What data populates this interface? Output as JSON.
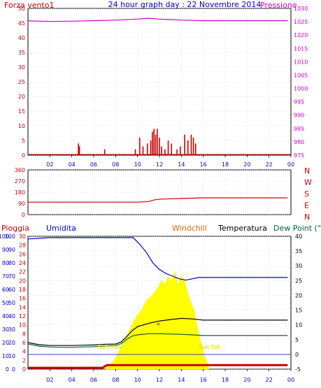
{
  "colors": {
    "wind": "#cc0000",
    "pressure": "#cc00cc",
    "title": "#0000cc",
    "direction": "#cc0000",
    "rain": "#cc0000",
    "humidity": "#0000cc",
    "windchill": "#dd6600",
    "temperature": "#000000",
    "dewpoint": "#006633",
    "sun": "#ffff00",
    "grid": "#c8c8c8"
  },
  "chart_data": [
    {
      "type": "bar",
      "title": "24 hour graph day : 22 Novembre 2014",
      "left_axis_label": "Forza vento1",
      "right_axis_label": "Pressione",
      "x_ticks": [
        "02",
        "04",
        "06",
        "08",
        "10",
        "12",
        "14",
        "16",
        "18",
        "20",
        "22",
        "00"
      ],
      "y_ticks": [
        "0",
        "5",
        "10",
        "15",
        "20",
        "25",
        "30",
        "35",
        "40",
        "45",
        "50"
      ],
      "y2_ticks": [
        "975",
        "980",
        "985",
        "990",
        "995",
        "1000",
        "1005",
        "1010",
        "1015",
        "1020",
        "1025",
        "1030"
      ],
      "ylim": [
        0,
        50
      ],
      "y2lim": [
        975,
        1030
      ],
      "xlim": [
        0,
        24
      ],
      "wind_bars": [
        {
          "x": 4.6,
          "v": 4
        },
        {
          "x": 4.7,
          "v": 3
        },
        {
          "x": 7.0,
          "v": 2
        },
        {
          "x": 9.8,
          "v": 2
        },
        {
          "x": 10.2,
          "v": 6
        },
        {
          "x": 10.5,
          "v": 3
        },
        {
          "x": 10.9,
          "v": 4
        },
        {
          "x": 11.2,
          "v": 5
        },
        {
          "x": 11.35,
          "v": 8
        },
        {
          "x": 11.5,
          "v": 9
        },
        {
          "x": 11.65,
          "v": 7
        },
        {
          "x": 11.8,
          "v": 9
        },
        {
          "x": 12.0,
          "v": 6
        },
        {
          "x": 12.2,
          "v": 3
        },
        {
          "x": 12.5,
          "v": 2
        },
        {
          "x": 12.8,
          "v": 5
        },
        {
          "x": 13.1,
          "v": 4
        },
        {
          "x": 13.6,
          "v": 2
        },
        {
          "x": 13.9,
          "v": 3
        },
        {
          "x": 14.3,
          "v": 7
        },
        {
          "x": 14.6,
          "v": 5
        },
        {
          "x": 14.9,
          "v": 7
        },
        {
          "x": 15.1,
          "v": 6
        },
        {
          "x": 15.3,
          "v": 4
        }
      ],
      "pressure": {
        "x": [
          0,
          2,
          4,
          6,
          8,
          10,
          11,
          12,
          13,
          14,
          15,
          16,
          18,
          20,
          22,
          23.7
        ],
        "y": [
          1025.3,
          1025.1,
          1025.2,
          1025.4,
          1025.6,
          1026.0,
          1026.3,
          1026.0,
          1025.8,
          1025.6,
          1025.5,
          1025.4,
          1025.4,
          1025.4,
          1025.4,
          1025.4
        ]
      }
    },
    {
      "type": "line",
      "right_axis_label": "N\nW\nS\nE\nN",
      "y_ticks": [
        "0",
        "90",
        "180",
        "270",
        "360"
      ],
      "ylim": [
        0,
        360
      ],
      "direction": {
        "x": [
          0,
          2,
          4,
          6,
          8,
          10,
          11,
          11.6,
          12.2,
          14,
          16,
          18,
          20,
          22,
          23.7
        ],
        "y": [
          100,
          100,
          100,
          100,
          100,
          100,
          105,
          120,
          125,
          130,
          135,
          135,
          135,
          135,
          135
        ]
      }
    },
    {
      "type": "line",
      "labels": {
        "rain": "Pioggia",
        "humidity": "Umidita",
        "windchill": "Windchill",
        "temperature": "Temperatura",
        "dewpoint": "Dew Point (°C"
      },
      "annotations": {
        "sunrise": "Sun Rise",
        "sunset": "Sun Set"
      },
      "rain_ticks": [
        "0",
        "2",
        "4",
        "6",
        "8",
        "10",
        "12",
        "14",
        "16",
        "18",
        "20",
        "22",
        "24",
        "26",
        "28",
        "30"
      ],
      "humidity_ticks": [
        "0",
        "10",
        "20",
        "30",
        "40",
        "50",
        "60",
        "70",
        "80",
        "90",
        "100"
      ],
      "mid_ticks": [
        "0",
        "10",
        "20",
        "30",
        "40",
        "50",
        "60",
        "70",
        "80",
        "90",
        "100"
      ],
      "temp_ticks": [
        "-5",
        "0",
        "5",
        "10",
        "15",
        "20",
        "25",
        "30",
        "35",
        "40"
      ],
      "humidity": {
        "x": [
          0,
          1,
          2,
          3,
          4,
          5,
          6,
          7,
          8,
          9,
          9.6,
          10.2,
          10.8,
          11.4,
          12,
          12.6,
          13.2,
          13.8,
          14.4,
          15,
          15.6,
          16,
          18,
          20,
          22,
          23.7
        ],
        "y": [
          98,
          98.5,
          99,
          99,
          99,
          99,
          99,
          99,
          99,
          99,
          99,
          94,
          88,
          80,
          75,
          72,
          70,
          68,
          67,
          68,
          69,
          69,
          69,
          69,
          69,
          69
        ]
      },
      "temperature": {
        "x": [
          0,
          1,
          2,
          3,
          4,
          5,
          6,
          7,
          8,
          8.5,
          9,
          9.5,
          10,
          11,
          12,
          13,
          14,
          15,
          16,
          18,
          20,
          22,
          23.7
        ],
        "y": [
          4.0,
          3.3,
          3.0,
          3.0,
          3.0,
          3.1,
          3.2,
          3.4,
          3.5,
          4.2,
          6.0,
          8.0,
          9.4,
          10.5,
          11.3,
          11.8,
          12.2,
          12.0,
          11.6,
          11.6,
          11.6,
          11.6,
          11.6
        ]
      },
      "dewpoint": {
        "x": [
          0,
          1,
          2,
          3,
          4,
          5,
          6,
          7,
          8,
          8.5,
          9,
          9.5,
          10,
          11,
          12,
          13,
          14,
          15,
          16,
          18,
          20,
          22,
          23.7
        ],
        "y": [
          3.5,
          2.8,
          2.5,
          2.4,
          2.4,
          2.5,
          2.6,
          2.8,
          3.0,
          3.6,
          5.0,
          6.2,
          6.6,
          7.0,
          7.0,
          6.9,
          6.8,
          6.6,
          6.4,
          6.4,
          6.4,
          6.4,
          6.4
        ]
      },
      "windchill": {
        "x": [
          11.8,
          12.0
        ],
        "y": [
          10.2,
          10.4
        ]
      },
      "rain_total": {
        "x": [
          0,
          6.8,
          7.2,
          23.7
        ],
        "y": [
          0.3,
          0.3,
          0.9,
          0.9
        ]
      },
      "solar": {
        "x": [
          7.1,
          7.6,
          8.0,
          8.4,
          8.8,
          9.2,
          9.5,
          9.8,
          10.1,
          10.4,
          10.7,
          11.0,
          11.3,
          11.6,
          11.9,
          12.2,
          12.5,
          12.8,
          13.1,
          13.4,
          13.7,
          14.0,
          14.3,
          14.6,
          14.9,
          15.2,
          15.5,
          15.8,
          16.1,
          16.5
        ],
        "y": [
          0.5,
          1.2,
          2.5,
          4.5,
          6.5,
          8.5,
          10,
          11.5,
          12.5,
          13.5,
          15,
          16,
          16.5,
          17.5,
          18.5,
          20,
          19,
          21,
          20,
          22,
          19,
          21,
          20,
          17,
          15,
          13,
          9,
          6,
          3,
          0.5
        ]
      }
    }
  ]
}
